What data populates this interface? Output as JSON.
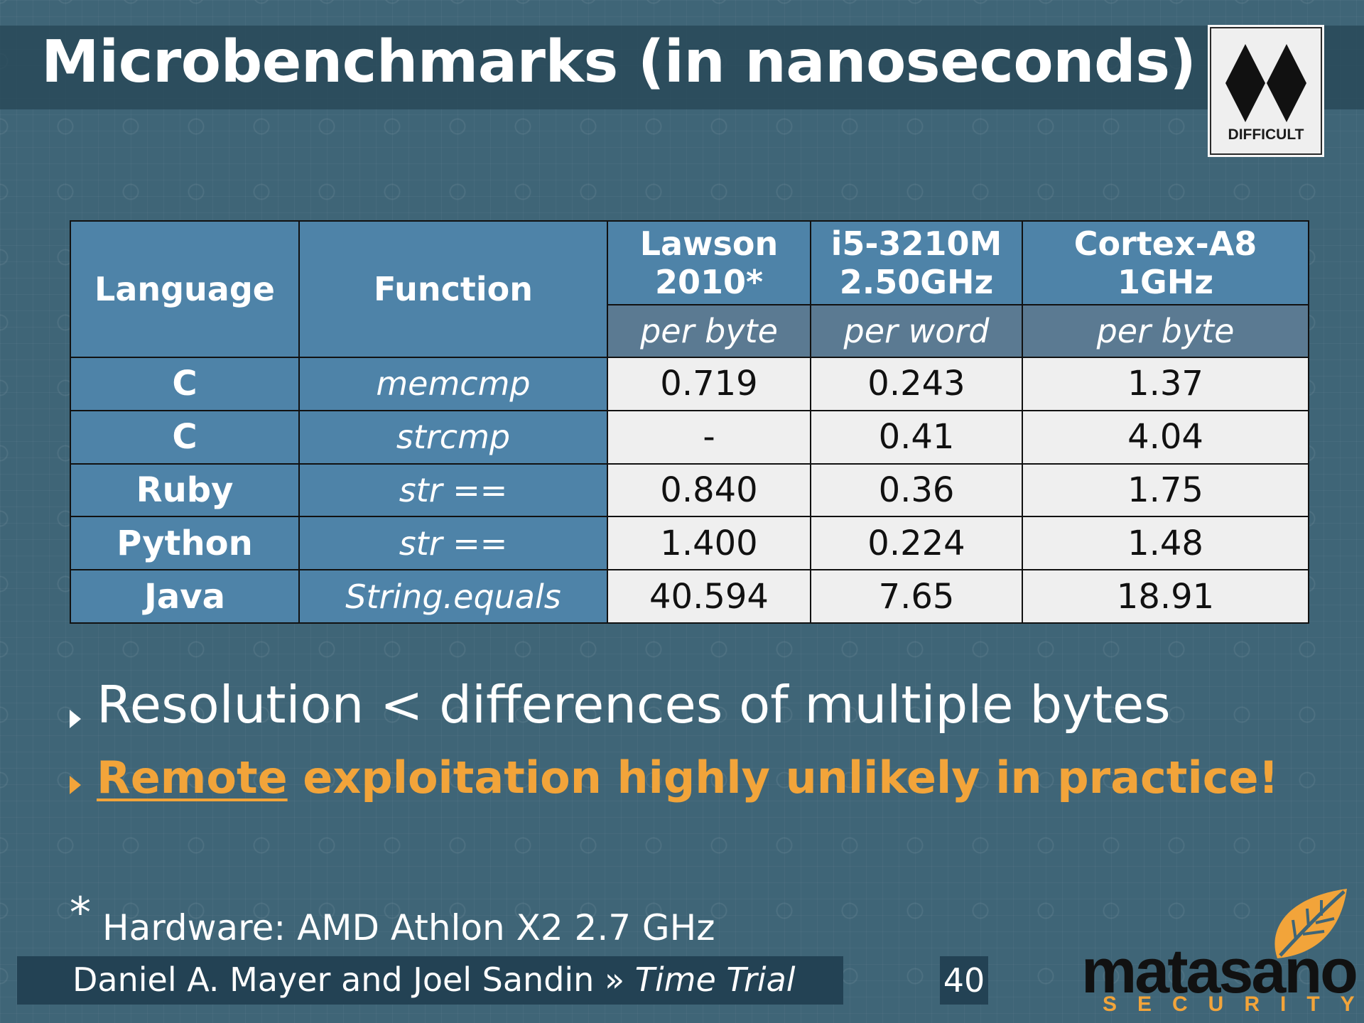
{
  "slide": {
    "title": "Microbenchmarks (in nanoseconds)",
    "badge": {
      "label": "DIFFICULT",
      "icon": "double-black-diamond-icon"
    }
  },
  "table": {
    "headers": {
      "language": "Language",
      "function": "Function",
      "col1_line1": "Lawson",
      "col1_line2": "2010*",
      "col2_line1": "i5-3210M",
      "col2_line2": "2.50GHz",
      "col3_line1": "Cortex-A8",
      "col3_line2": "1GHz"
    },
    "units": [
      "per byte",
      "per word",
      "per byte"
    ],
    "rows": [
      {
        "language": "C",
        "function": "memcmp",
        "values": [
          "0.719",
          "0.243",
          "1.37"
        ]
      },
      {
        "language": "C",
        "function": "strcmp",
        "values": [
          "-",
          "0.41",
          "4.04"
        ]
      },
      {
        "language": "Ruby",
        "function": "str ==",
        "values": [
          "0.840",
          "0.36",
          "1.75"
        ]
      },
      {
        "language": "Python",
        "function": "str ==",
        "values": [
          "1.400",
          "0.224",
          "1.48"
        ]
      },
      {
        "language": "Java",
        "function": "String.equals",
        "values": [
          "40.594",
          "7.65",
          "18.91"
        ]
      }
    ]
  },
  "bullets": {
    "first": "Resolution < differences of multiple bytes",
    "second_underlined": "Remote",
    "second_rest": " exploitation highly unlikely in practice!"
  },
  "footnote": {
    "marker": "*",
    "text": "Hardware:  AMD Athlon X2 2.7 GHz"
  },
  "footer": {
    "authors": "Daniel A. Mayer and Joel Sandin",
    "separator": "»",
    "talk": "Time Trial",
    "page": "40",
    "logo_word": "matasano",
    "logo_sub": "SECURITY",
    "logo_icon": "leaf-icon"
  },
  "colors": {
    "background": "#3f6577",
    "header_cell": "#4e83a8",
    "unit_cell": "#5b7a92",
    "value_cell": "#efefef",
    "accent": "#f2a43a"
  }
}
